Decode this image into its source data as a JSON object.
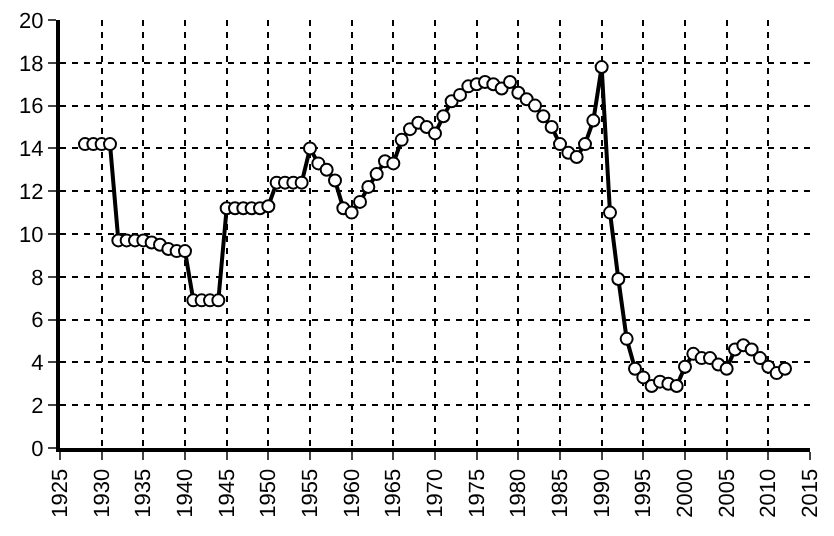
{
  "chart_data": {
    "type": "line",
    "marker": "circle",
    "grid": true,
    "color": "#000000",
    "x": [
      1928,
      1929,
      1930,
      1931,
      1932,
      1933,
      1934,
      1935,
      1936,
      1937,
      1938,
      1939,
      1940,
      1941,
      1942,
      1943,
      1944,
      1945,
      1946,
      1947,
      1948,
      1949,
      1950,
      1951,
      1952,
      1953,
      1954,
      1955,
      1956,
      1957,
      1958,
      1959,
      1960,
      1961,
      1962,
      1963,
      1964,
      1965,
      1966,
      1967,
      1968,
      1969,
      1970,
      1971,
      1972,
      1973,
      1974,
      1975,
      1976,
      1977,
      1978,
      1979,
      1980,
      1981,
      1982,
      1983,
      1984,
      1985,
      1986,
      1987,
      1988,
      1989,
      1990,
      1991,
      1992,
      1993,
      1994,
      1995,
      1996,
      1997,
      1998,
      1999,
      2000,
      2001,
      2002,
      2003,
      2004,
      2005,
      2006,
      2007,
      2008,
      2009,
      2010,
      2011,
      2012
    ],
    "values": [
      14.2,
      14.2,
      14.2,
      14.2,
      9.7,
      9.7,
      9.7,
      9.7,
      9.6,
      9.5,
      9.3,
      9.2,
      9.2,
      6.9,
      6.9,
      6.9,
      6.9,
      11.2,
      11.2,
      11.2,
      11.2,
      11.2,
      11.3,
      12.4,
      12.4,
      12.4,
      12.4,
      14.0,
      13.3,
      13.0,
      12.5,
      11.2,
      11.0,
      11.5,
      12.2,
      12.8,
      13.4,
      13.3,
      14.4,
      14.9,
      15.2,
      15.0,
      14.7,
      15.5,
      16.2,
      16.5,
      16.9,
      17.0,
      17.1,
      17.0,
      16.8,
      17.1,
      16.6,
      16.3,
      16.0,
      15.5,
      15.0,
      14.2,
      13.8,
      13.6,
      14.2,
      15.3,
      17.8,
      11.0,
      7.9,
      5.1,
      3.7,
      3.3,
      2.9,
      3.1,
      3.0,
      2.9,
      3.8,
      4.4,
      4.2,
      4.2,
      3.9,
      3.7,
      4.6,
      4.8,
      4.6,
      4.2,
      3.8,
      3.5,
      3.7
    ],
    "xlim": [
      1925,
      2015
    ],
    "xticks": [
      1925,
      1930,
      1935,
      1940,
      1945,
      1950,
      1955,
      1960,
      1965,
      1970,
      1975,
      1980,
      1985,
      1990,
      1995,
      2000,
      2005,
      2010,
      2015
    ],
    "ylim": [
      0,
      20
    ],
    "yticks": [
      0,
      2,
      4,
      6,
      8,
      10,
      12,
      14,
      16,
      18,
      20
    ]
  }
}
